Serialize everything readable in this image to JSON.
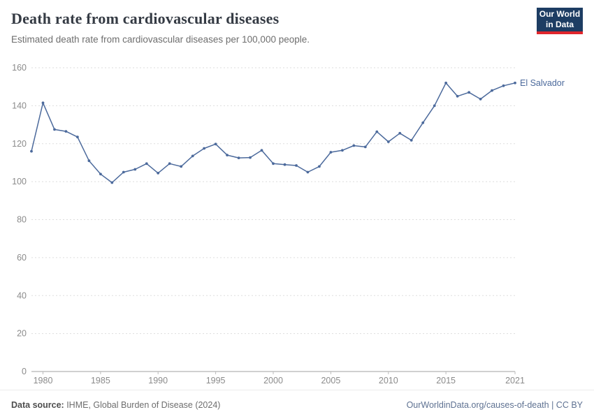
{
  "header": {
    "title": "Death rate from cardiovascular diseases",
    "subtitle": "Estimated death rate from cardiovascular diseases per 100,000 people.",
    "logo": {
      "line1": "Our World",
      "line2": "in Data",
      "background": "#1d3d63",
      "accent": "#e0262c"
    }
  },
  "chart_data": {
    "type": "line",
    "title": "Death rate from cardiovascular diseases",
    "xlabel": "",
    "ylabel": "",
    "ylim": [
      0,
      160
    ],
    "yticks": [
      0,
      20,
      40,
      60,
      80,
      100,
      120,
      140,
      160
    ],
    "xticks": [
      1980,
      1985,
      1990,
      1995,
      2000,
      2005,
      2010,
      2015,
      2021
    ],
    "grid": "horizontal-dashed",
    "legend_position": "end-of-line-label",
    "series": [
      {
        "name": "El Salvador",
        "color": "#4c6a9c",
        "x": [
          1979,
          1980,
          1981,
          1982,
          1983,
          1984,
          1985,
          1986,
          1987,
          1988,
          1989,
          1990,
          1991,
          1992,
          1993,
          1994,
          1995,
          1996,
          1997,
          1998,
          1999,
          2000,
          2001,
          2002,
          2003,
          2004,
          2005,
          2006,
          2007,
          2008,
          2009,
          2010,
          2011,
          2012,
          2013,
          2014,
          2015,
          2016,
          2017,
          2018,
          2019,
          2020,
          2021
        ],
        "values": [
          116,
          141.5,
          127.5,
          126.5,
          123.5,
          111,
          104,
          99.5,
          105,
          106.5,
          109.5,
          104.5,
          109.5,
          108,
          113.5,
          117.5,
          119.8,
          114,
          112.5,
          112.7,
          116.5,
          109.5,
          109,
          108.5,
          105,
          108,
          115.5,
          116.5,
          119,
          118.3,
          126.3,
          121,
          125.5,
          121.8,
          131,
          140,
          152,
          145,
          147,
          143.5,
          148,
          150.5,
          152
        ]
      }
    ]
  },
  "footer": {
    "source_label": "Data source:",
    "source_text": " IHME, Global Burden of Disease (2024)",
    "rights": "OurWorldinData.org/causes-of-death | CC BY"
  },
  "colors": {
    "gridline": "#dddddd",
    "axis": "#a1a1a1",
    "tick_text": "#8b8b8b",
    "title_text": "#353b44",
    "subtitle_text": "#6e6e6e"
  }
}
